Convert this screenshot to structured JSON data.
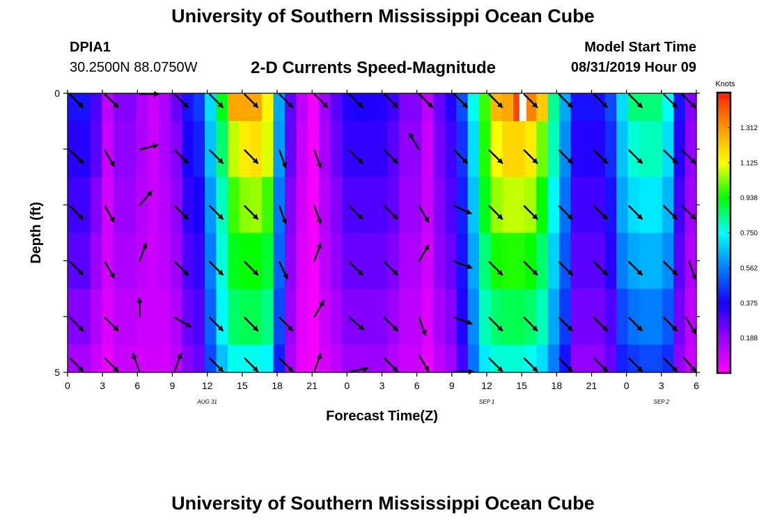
{
  "page": {
    "title_top": "University of Southern Mississippi Ocean Cube",
    "title_bottom": "University of Southern Mississippi Ocean Cube",
    "station": "DPIA1",
    "coords": "30.2500N 88.0750W",
    "subtitle": "2-D Currents Speed-Magnitude",
    "model_start_label": "Model Start Time",
    "model_start_value": "08/31/2019 Hour 09"
  },
  "chart_data": {
    "type": "heatmap",
    "title": "2-D Currents Speed-Magnitude",
    "xlabel": "Forecast Time(Z)",
    "ylabel": "Depth (ft)",
    "ylim": [
      5,
      0
    ],
    "xlim": [
      0,
      54
    ],
    "x_tick_labels": [
      "0",
      "3",
      "6",
      "9",
      "12",
      "15",
      "18",
      "21",
      "0",
      "3",
      "6",
      "9",
      "12",
      "15",
      "18",
      "21",
      "0",
      "3",
      "6"
    ],
    "x_tick_hours": [
      0,
      3,
      6,
      9,
      12,
      15,
      18,
      21,
      24,
      27,
      30,
      33,
      36,
      39,
      42,
      45,
      48,
      51,
      54
    ],
    "date_labels": [
      {
        "text": "AUG 31",
        "hour": 12
      },
      {
        "text": "SEP 1",
        "hour": 36
      },
      {
        "text": "SEP 2",
        "hour": 51
      }
    ],
    "y_tick_labels": [
      "0",
      "5"
    ],
    "colorbar": {
      "label": "Knots",
      "min": 0.0,
      "max": 1.5,
      "ticks": [
        "1.312",
        "1.125",
        "0.938",
        "0.750",
        "0.562",
        "0.375",
        "0.188"
      ],
      "tick_values": [
        1.312,
        1.125,
        0.938,
        0.75,
        0.562,
        0.375,
        0.188
      ],
      "colors": [
        "#ff00ff",
        "#9900ff",
        "#1a00ff",
        "#0080ff",
        "#00ffff",
        "#00ff00",
        "#ffff00",
        "#ff9900",
        "#ff2200"
      ]
    },
    "depth_layers": [
      "0-0.5",
      "0.5-1.5",
      "1.5-2.5",
      "2.5-3.5",
      "3.5-4.5",
      "4.5-5"
    ],
    "speed_knots": [
      [
        0.4,
        0.4,
        0.3,
        0.12,
        0.22,
        0.22,
        0.15,
        0.1,
        0.15,
        0.26,
        0.4,
        0.46,
        0.7,
        0.92,
        1.29,
        1.29,
        1.29,
        1.14,
        0.62,
        0.27,
        0.12,
        0.02,
        0.18,
        0.28,
        0.36,
        0.38,
        0.37,
        0.36,
        0.32,
        0.22,
        0.22,
        0.12,
        0.26,
        0.36,
        0.49,
        0.76,
        0.98,
        1.26,
        1.29,
        1.45,
        1.35,
        1.22,
        0.83,
        0.62,
        0.4,
        0.4,
        0.4,
        0.48,
        0.7,
        0.85,
        0.85,
        0.85,
        0.75,
        0.4,
        0.22
      ],
      [
        0.36,
        0.36,
        0.28,
        0.1,
        0.2,
        0.2,
        0.15,
        0.1,
        0.15,
        0.22,
        0.38,
        0.42,
        0.66,
        0.86,
        1.08,
        1.16,
        1.18,
        1.1,
        0.6,
        0.26,
        0.1,
        0.02,
        0.16,
        0.26,
        0.34,
        0.34,
        0.34,
        0.34,
        0.28,
        0.2,
        0.2,
        0.1,
        0.24,
        0.32,
        0.45,
        0.7,
        0.96,
        1.12,
        1.2,
        1.2,
        1.16,
        1.02,
        0.8,
        0.58,
        0.36,
        0.36,
        0.36,
        0.44,
        0.66,
        0.78,
        0.8,
        0.8,
        0.7,
        0.36,
        0.2
      ],
      [
        0.32,
        0.32,
        0.22,
        0.08,
        0.18,
        0.18,
        0.13,
        0.1,
        0.13,
        0.2,
        0.34,
        0.38,
        0.6,
        0.8,
        0.98,
        1.04,
        1.05,
        0.98,
        0.55,
        0.22,
        0.08,
        0.02,
        0.14,
        0.22,
        0.3,
        0.3,
        0.3,
        0.3,
        0.26,
        0.18,
        0.18,
        0.1,
        0.22,
        0.3,
        0.42,
        0.66,
        0.92,
        1.05,
        1.08,
        1.08,
        1.06,
        0.94,
        0.74,
        0.54,
        0.32,
        0.32,
        0.32,
        0.4,
        0.62,
        0.7,
        0.72,
        0.72,
        0.64,
        0.32,
        0.18
      ],
      [
        0.28,
        0.28,
        0.18,
        0.08,
        0.15,
        0.15,
        0.12,
        0.1,
        0.12,
        0.18,
        0.3,
        0.34,
        0.56,
        0.78,
        0.92,
        0.94,
        0.94,
        0.9,
        0.52,
        0.2,
        0.06,
        0.02,
        0.12,
        0.2,
        0.26,
        0.26,
        0.26,
        0.26,
        0.22,
        0.15,
        0.15,
        0.08,
        0.2,
        0.26,
        0.4,
        0.62,
        0.85,
        0.95,
        0.96,
        0.96,
        0.94,
        0.86,
        0.68,
        0.5,
        0.28,
        0.28,
        0.28,
        0.36,
        0.56,
        0.62,
        0.64,
        0.64,
        0.58,
        0.28,
        0.15
      ],
      [
        0.22,
        0.22,
        0.14,
        0.06,
        0.12,
        0.12,
        0.1,
        0.1,
        0.1,
        0.15,
        0.26,
        0.3,
        0.52,
        0.74,
        0.86,
        0.88,
        0.88,
        0.84,
        0.48,
        0.18,
        0.05,
        0.02,
        0.1,
        0.16,
        0.22,
        0.22,
        0.22,
        0.22,
        0.18,
        0.12,
        0.12,
        0.06,
        0.16,
        0.22,
        0.36,
        0.58,
        0.8,
        0.86,
        0.88,
        0.88,
        0.86,
        0.8,
        0.62,
        0.46,
        0.24,
        0.24,
        0.24,
        0.3,
        0.48,
        0.54,
        0.56,
        0.56,
        0.5,
        0.24,
        0.12
      ],
      [
        0.16,
        0.16,
        0.1,
        0.04,
        0.1,
        0.1,
        0.08,
        0.08,
        0.08,
        0.12,
        0.22,
        0.26,
        0.48,
        0.66,
        0.76,
        0.76,
        0.76,
        0.74,
        0.42,
        0.15,
        0.04,
        0.02,
        0.08,
        0.12,
        0.18,
        0.18,
        0.18,
        0.18,
        0.14,
        0.1,
        0.1,
        0.04,
        0.12,
        0.18,
        0.32,
        0.54,
        0.72,
        0.78,
        0.78,
        0.78,
        0.76,
        0.7,
        0.56,
        0.4,
        0.2,
        0.2,
        0.2,
        0.26,
        0.42,
        0.46,
        0.48,
        0.48,
        0.44,
        0.2,
        0.1
      ]
    ],
    "arrow_depths": [
      0,
      1,
      2,
      3,
      4,
      5
    ],
    "arrow_hours": [
      0,
      3,
      6,
      9,
      12,
      15,
      18,
      21,
      24,
      27,
      30,
      33,
      36,
      39,
      42,
      45,
      48,
      51,
      54
    ],
    "arrow_directions_deg": [
      [
        135,
        135,
        90,
        135,
        135,
        135,
        135,
        135,
        135,
        135,
        135,
        135,
        135,
        135,
        135,
        135,
        135,
        135,
        135
      ],
      [
        135,
        150,
        75,
        135,
        135,
        135,
        160,
        160,
        135,
        135,
        330,
        135,
        135,
        135,
        135,
        135,
        135,
        135,
        135
      ],
      [
        135,
        150,
        40,
        135,
        135,
        135,
        160,
        160,
        135,
        135,
        150,
        115,
        135,
        135,
        135,
        135,
        135,
        135,
        135
      ],
      [
        135,
        150,
        20,
        135,
        135,
        135,
        155,
        20,
        135,
        135,
        30,
        110,
        135,
        135,
        135,
        135,
        135,
        135,
        160
      ],
      [
        135,
        135,
        0,
        120,
        135,
        135,
        135,
        30,
        130,
        135,
        160,
        110,
        135,
        135,
        135,
        135,
        135,
        135,
        150
      ],
      [
        135,
        135,
        340,
        20,
        135,
        135,
        135,
        20,
        80,
        135,
        150,
        90,
        135,
        135,
        135,
        135,
        135,
        135,
        140
      ]
    ]
  }
}
